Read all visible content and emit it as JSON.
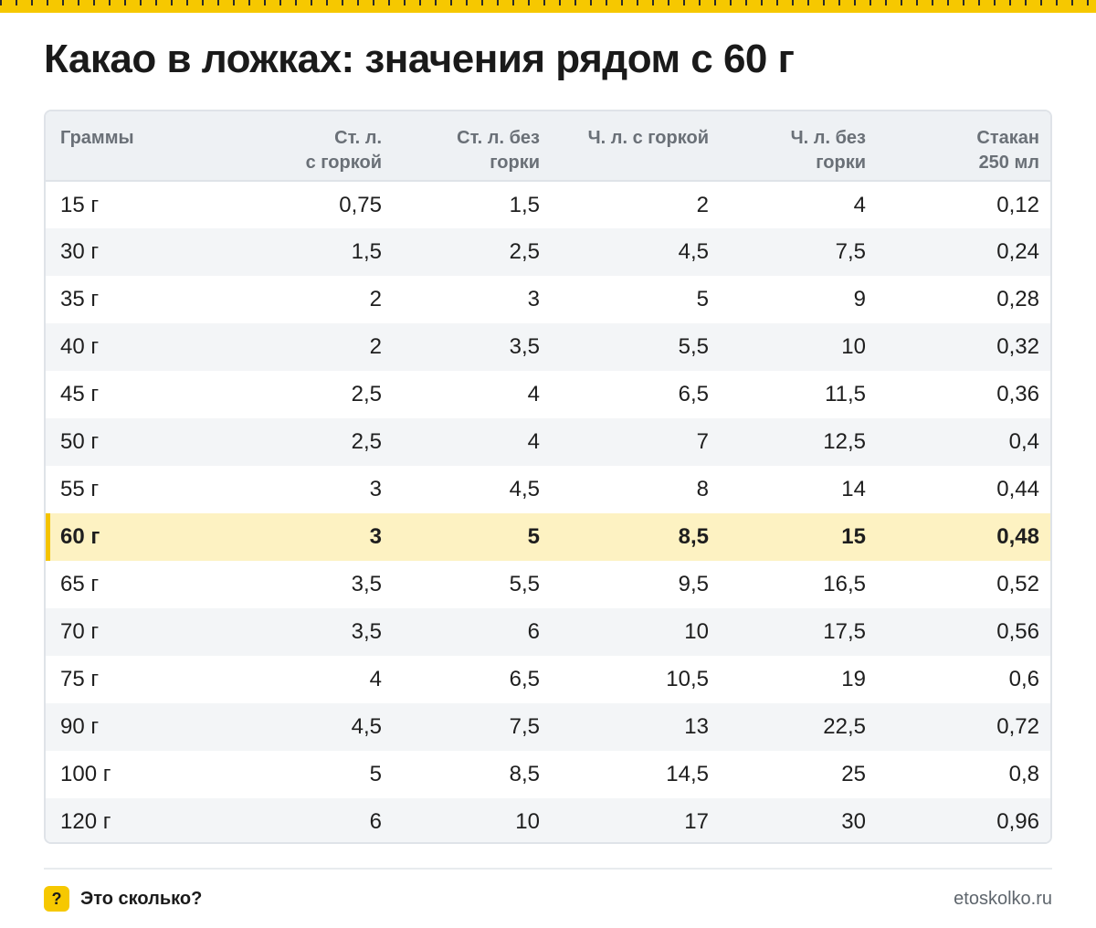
{
  "title": "Какао в ложках: значения рядом с 60 г",
  "table": {
    "headers": [
      "Граммы",
      "Ст. л.\nс горкой",
      "Ст. л. без\nгорки",
      "Ч. л. с горкой",
      "Ч. л. без\nгорки",
      "Стакан\n250 мл"
    ],
    "rows": [
      [
        "15 г",
        "0,75",
        "1,5",
        "2",
        "4",
        "0,12"
      ],
      [
        "30 г",
        "1,5",
        "2,5",
        "4,5",
        "7,5",
        "0,24"
      ],
      [
        "35 г",
        "2",
        "3",
        "5",
        "9",
        "0,28"
      ],
      [
        "40 г",
        "2",
        "3,5",
        "5,5",
        "10",
        "0,32"
      ],
      [
        "45 г",
        "2,5",
        "4",
        "6,5",
        "11,5",
        "0,36"
      ],
      [
        "50 г",
        "2,5",
        "4",
        "7",
        "12,5",
        "0,4"
      ],
      [
        "55 г",
        "3",
        "4,5",
        "8",
        "14",
        "0,44"
      ],
      [
        "60 г",
        "3",
        "5",
        "8,5",
        "15",
        "0,48"
      ],
      [
        "65 г",
        "3,5",
        "5,5",
        "9,5",
        "16,5",
        "0,52"
      ],
      [
        "70 г",
        "3,5",
        "6",
        "10",
        "17,5",
        "0,56"
      ],
      [
        "75 г",
        "4",
        "6,5",
        "10,5",
        "19",
        "0,6"
      ],
      [
        "90 г",
        "4,5",
        "7,5",
        "13",
        "22,5",
        "0,72"
      ],
      [
        "100 г",
        "5",
        "8,5",
        "14,5",
        "25",
        "0,8"
      ],
      [
        "120 г",
        "6",
        "10",
        "17",
        "30",
        "0,96"
      ]
    ],
    "highlighted_row": "60 г"
  },
  "footer": {
    "brand_icon": "question-mark-icon",
    "brand_icon_glyph": "?",
    "brand_name": "Это сколько?",
    "site": "etoskolko.ru"
  },
  "colors": {
    "accent": "#f6c800",
    "highlight_row": "#fdf2c2",
    "header_bg": "#eef1f4"
  }
}
